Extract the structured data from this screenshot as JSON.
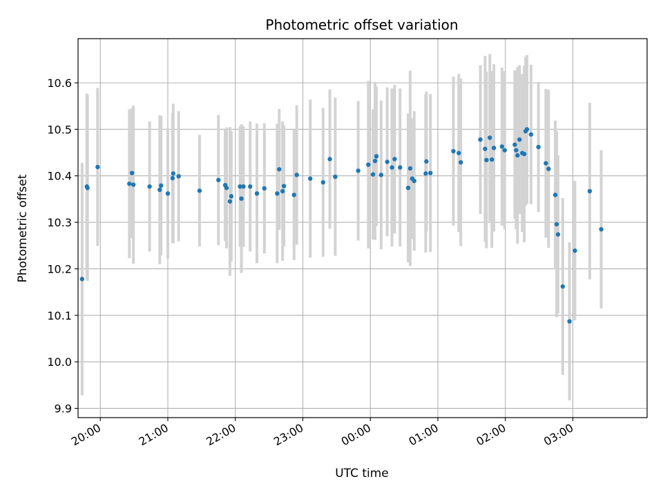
{
  "chart_data": {
    "type": "scatter",
    "title": "Photometric offset variation",
    "xlabel": "UTC time",
    "ylabel": "Photometric offset",
    "grid": true,
    "xlim": [
      -0.33,
      8.1
    ],
    "ylim": [
      9.88,
      10.695
    ],
    "x_ticks": [
      0,
      1,
      2,
      3,
      4,
      5,
      6,
      7
    ],
    "x_tick_labels": [
      "20:00",
      "21:00",
      "22:00",
      "23:00",
      "00:00",
      "01:00",
      "02:00",
      "03:00"
    ],
    "y_ticks": [
      9.9,
      10.0,
      10.1,
      10.2,
      10.3,
      10.4,
      10.5,
      10.6
    ],
    "y_tick_labels": [
      "9.9",
      "10.0",
      "10.1",
      "10.2",
      "10.3",
      "10.4",
      "10.5",
      "10.6"
    ],
    "point_color": "#1f77b4",
    "errorbar_color": "#d3d3d3",
    "series": [
      {
        "name": "offset",
        "x": [
          -0.27,
          -0.2,
          -0.19,
          -0.04,
          0.43,
          0.47,
          0.49,
          0.73,
          0.88,
          0.9,
          1.0,
          1.07,
          1.08,
          1.16,
          1.47,
          1.75,
          1.85,
          1.87,
          1.92,
          1.94,
          2.07,
          2.09,
          2.12,
          2.22,
          2.32,
          2.43,
          2.62,
          2.65,
          2.7,
          2.72,
          2.87,
          2.91,
          3.11,
          3.3,
          3.4,
          3.48,
          3.82,
          3.97,
          4.04,
          4.07,
          4.09,
          4.16,
          4.25,
          4.32,
          4.36,
          4.44,
          4.56,
          4.59,
          4.62,
          4.65,
          4.82,
          4.83,
          4.89,
          5.23,
          5.31,
          5.34,
          5.63,
          5.7,
          5.72,
          5.77,
          5.8,
          5.83,
          5.95,
          5.99,
          6.14,
          6.16,
          6.18,
          6.21,
          6.25,
          6.28,
          6.3,
          6.32,
          6.38,
          6.49,
          6.6,
          6.64,
          6.74,
          6.76,
          6.78,
          6.85,
          6.95,
          7.03,
          7.25,
          7.42
        ],
        "y": [
          10.178,
          10.377,
          10.374,
          10.419,
          10.383,
          10.406,
          10.381,
          10.377,
          10.37,
          10.379,
          10.362,
          10.395,
          10.405,
          10.399,
          10.368,
          10.391,
          10.38,
          10.374,
          10.345,
          10.356,
          10.377,
          10.351,
          10.377,
          10.377,
          10.362,
          10.373,
          10.362,
          10.414,
          10.367,
          10.378,
          10.359,
          10.402,
          10.394,
          10.386,
          10.436,
          10.398,
          10.411,
          10.424,
          10.403,
          10.432,
          10.442,
          10.402,
          10.43,
          10.418,
          10.436,
          10.418,
          10.374,
          10.416,
          10.394,
          10.389,
          10.405,
          10.431,
          10.406,
          10.453,
          10.449,
          10.429,
          10.478,
          10.458,
          10.434,
          10.482,
          10.435,
          10.46,
          10.463,
          10.455,
          10.467,
          10.455,
          10.444,
          10.478,
          10.449,
          10.447,
          10.496,
          10.5,
          10.489,
          10.462,
          10.427,
          10.415,
          10.359,
          10.296,
          10.274,
          10.162,
          10.087,
          10.239,
          10.367,
          10.285
        ],
        "err": [
          0.25,
          0.2,
          0.2,
          0.17,
          0.16,
          0.14,
          0.17,
          0.14,
          0.16,
          0.15,
          0.14,
          0.14,
          0.15,
          0.14,
          0.12,
          0.14,
          0.12,
          0.13,
          0.16,
          0.14,
          0.13,
          0.16,
          0.13,
          0.14,
          0.15,
          0.14,
          0.15,
          0.13,
          0.15,
          0.13,
          0.14,
          0.15,
          0.17,
          0.16,
          0.15,
          0.17,
          0.15,
          0.18,
          0.14,
          0.17,
          0.15,
          0.16,
          0.16,
          0.17,
          0.16,
          0.17,
          0.16,
          0.21,
          0.13,
          0.15,
          0.17,
          0.15,
          0.17,
          0.16,
          0.17,
          0.18,
          0.16,
          0.2,
          0.19,
          0.18,
          0.19,
          0.18,
          0.17,
          0.17,
          0.16,
          0.17,
          0.19,
          0.16,
          0.17,
          0.19,
          0.16,
          0.16,
          0.15,
          0.14,
          0.16,
          0.17,
          0.16,
          0.2,
          0.17,
          0.19,
          0.17,
          0.15,
          0.19,
          0.17
        ]
      }
    ]
  }
}
